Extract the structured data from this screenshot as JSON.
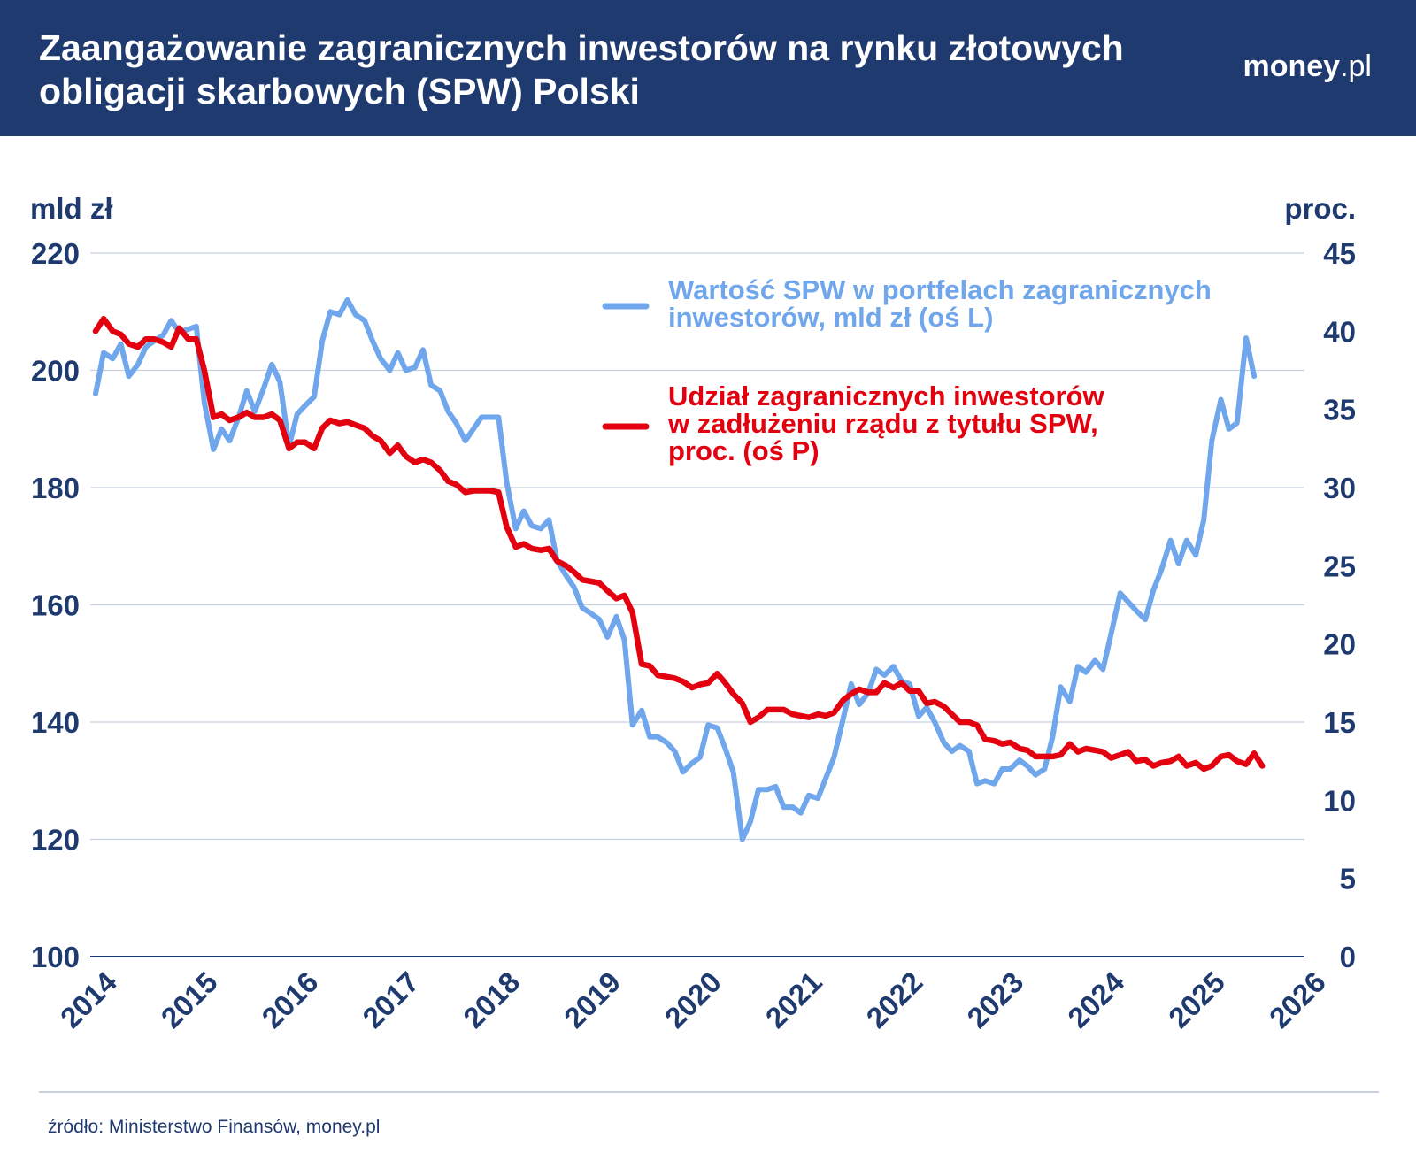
{
  "header": {
    "title": "Zaangażowanie zagranicznych inwestorów na rynku złotowych obligacji skarbowych (SPW) Polski",
    "brand_name": "money",
    "brand_domain": ".pl"
  },
  "source": "źródło: Ministerstwo Finansów, money.pl",
  "colors": {
    "header_bg": "#1f3a6e",
    "text": "#1f3a6e",
    "blue_series": "#6fa6ec",
    "red_series": "#e3000f",
    "grid": "#c7d0de"
  },
  "chart_data": {
    "type": "line",
    "left_axis": {
      "label": "mld zł",
      "ticks": [
        100,
        120,
        140,
        160,
        180,
        200,
        220
      ],
      "ylim": [
        100,
        220
      ]
    },
    "right_axis": {
      "label": "proc.",
      "ticks": [
        0,
        5,
        10,
        15,
        20,
        25,
        30,
        35,
        40,
        45
      ],
      "ylim": [
        0,
        45
      ]
    },
    "x_ticks": [
      "2014",
      "2015",
      "2016",
      "2017",
      "2018",
      "2019",
      "2020",
      "2021",
      "2022",
      "2023",
      "2024",
      "2025",
      "2026"
    ],
    "xlim": [
      2014,
      2026
    ],
    "grid": true,
    "legend_placement": "top-center",
    "series": [
      {
        "name": "Wartość SPW w portfelach zagranicznych inwestorów, mld zł (oś L)",
        "axis": "left",
        "color": "#6fa6ec",
        "points": [
          [
            2014.0,
            196.0
          ],
          [
            2014.08,
            203.0
          ],
          [
            2014.17,
            202.0
          ],
          [
            2014.25,
            204.5
          ],
          [
            2014.33,
            199.0
          ],
          [
            2014.42,
            201.0
          ],
          [
            2014.5,
            204.0
          ],
          [
            2014.58,
            205.0
          ],
          [
            2014.67,
            206.0
          ],
          [
            2014.75,
            208.5
          ],
          [
            2014.83,
            206.5
          ],
          [
            2014.92,
            207.0
          ],
          [
            2015.0,
            207.5
          ],
          [
            2015.08,
            194.5
          ],
          [
            2015.17,
            186.5
          ],
          [
            2015.25,
            190.0
          ],
          [
            2015.33,
            188.0
          ],
          [
            2015.42,
            192.0
          ],
          [
            2015.5,
            196.5
          ],
          [
            2015.58,
            193.0
          ],
          [
            2015.67,
            197.0
          ],
          [
            2015.75,
            201.0
          ],
          [
            2015.83,
            198.0
          ],
          [
            2015.92,
            187.0
          ],
          [
            2016.0,
            192.5
          ],
          [
            2016.08,
            194.0
          ],
          [
            2016.17,
            195.5
          ],
          [
            2016.25,
            205.0
          ],
          [
            2016.33,
            210.0
          ],
          [
            2016.42,
            209.5
          ],
          [
            2016.5,
            212.0
          ],
          [
            2016.58,
            209.5
          ],
          [
            2016.67,
            208.5
          ],
          [
            2016.75,
            205.0
          ],
          [
            2016.83,
            202.0
          ],
          [
            2016.92,
            200.0
          ],
          [
            2017.0,
            203.0
          ],
          [
            2017.08,
            200.0
          ],
          [
            2017.17,
            200.5
          ],
          [
            2017.25,
            203.5
          ],
          [
            2017.33,
            197.5
          ],
          [
            2017.42,
            196.5
          ],
          [
            2017.5,
            193.0
          ],
          [
            2017.58,
            191.0
          ],
          [
            2017.67,
            188.0
          ],
          [
            2017.75,
            190.0
          ],
          [
            2017.83,
            192.0
          ],
          [
            2017.92,
            192.0
          ],
          [
            2018.0,
            192.0
          ],
          [
            2018.08,
            181.0
          ],
          [
            2018.17,
            173.0
          ],
          [
            2018.25,
            176.0
          ],
          [
            2018.33,
            173.5
          ],
          [
            2018.42,
            173.0
          ],
          [
            2018.5,
            174.5
          ],
          [
            2018.58,
            167.5
          ],
          [
            2018.67,
            165.0
          ],
          [
            2018.75,
            163.0
          ],
          [
            2018.83,
            159.5
          ],
          [
            2018.92,
            158.5
          ],
          [
            2019.0,
            157.5
          ],
          [
            2019.08,
            154.5
          ],
          [
            2019.17,
            158.0
          ],
          [
            2019.25,
            154.0
          ],
          [
            2019.33,
            139.5
          ],
          [
            2019.42,
            142.0
          ],
          [
            2019.5,
            137.5
          ],
          [
            2019.58,
            137.5
          ],
          [
            2019.67,
            136.5
          ],
          [
            2019.75,
            135.0
          ],
          [
            2019.83,
            131.5
          ],
          [
            2019.92,
            133.0
          ],
          [
            2020.0,
            134.0
          ],
          [
            2020.08,
            139.5
          ],
          [
            2020.17,
            139.0
          ],
          [
            2020.25,
            135.5
          ],
          [
            2020.33,
            131.5
          ],
          [
            2020.42,
            120.0
          ],
          [
            2020.5,
            123.0
          ],
          [
            2020.58,
            128.5
          ],
          [
            2020.67,
            128.5
          ],
          [
            2020.75,
            129.0
          ],
          [
            2020.83,
            125.5
          ],
          [
            2020.92,
            125.5
          ],
          [
            2021.0,
            124.5
          ],
          [
            2021.08,
            127.5
          ],
          [
            2021.17,
            127.0
          ],
          [
            2021.25,
            130.5
          ],
          [
            2021.33,
            134.0
          ],
          [
            2021.42,
            140.5
          ],
          [
            2021.5,
            146.5
          ],
          [
            2021.58,
            143.0
          ],
          [
            2021.67,
            145.0
          ],
          [
            2021.75,
            149.0
          ],
          [
            2021.83,
            148.0
          ],
          [
            2021.92,
            149.5
          ],
          [
            2022.0,
            147.0
          ],
          [
            2022.08,
            146.5
          ],
          [
            2022.17,
            141.0
          ],
          [
            2022.25,
            142.5
          ],
          [
            2022.33,
            140.0
          ],
          [
            2022.42,
            136.5
          ],
          [
            2022.5,
            135.0
          ],
          [
            2022.58,
            136.0
          ],
          [
            2022.67,
            135.0
          ],
          [
            2022.75,
            129.5
          ],
          [
            2022.83,
            130.0
          ],
          [
            2022.92,
            129.5
          ],
          [
            2023.0,
            132.0
          ],
          [
            2023.08,
            132.0
          ],
          [
            2023.17,
            133.5
          ],
          [
            2023.25,
            132.5
          ],
          [
            2023.33,
            131.0
          ],
          [
            2023.42,
            132.0
          ],
          [
            2023.5,
            137.5
          ],
          [
            2023.58,
            146.0
          ],
          [
            2023.67,
            143.5
          ],
          [
            2023.75,
            149.5
          ],
          [
            2023.83,
            148.5
          ],
          [
            2023.92,
            150.5
          ],
          [
            2024.0,
            149.0
          ],
          [
            2024.08,
            155.0
          ],
          [
            2024.17,
            162.0
          ],
          [
            2024.25,
            160.5
          ],
          [
            2024.33,
            159.0
          ],
          [
            2024.42,
            157.5
          ],
          [
            2024.5,
            162.5
          ],
          [
            2024.58,
            166.0
          ],
          [
            2024.67,
            171.0
          ],
          [
            2024.75,
            167.0
          ],
          [
            2024.83,
            171.0
          ],
          [
            2024.92,
            168.5
          ],
          [
            2025.0,
            174.5
          ],
          [
            2025.08,
            188.0
          ],
          [
            2025.17,
            195.0
          ],
          [
            2025.25,
            190.0
          ],
          [
            2025.33,
            191.0
          ],
          [
            2025.42,
            205.5
          ],
          [
            2025.5,
            199.0
          ]
        ]
      },
      {
        "name": "Udział zagranicznych inwestorów w zadłużeniu rządu z tytułu SPW, proc. (oś P)",
        "axis": "right",
        "color": "#e3000f",
        "points": [
          [
            2014.0,
            40.0
          ],
          [
            2014.08,
            40.8
          ],
          [
            2014.17,
            40.0
          ],
          [
            2014.25,
            39.8
          ],
          [
            2014.33,
            39.2
          ],
          [
            2014.42,
            39.0
          ],
          [
            2014.5,
            39.5
          ],
          [
            2014.58,
            39.5
          ],
          [
            2014.67,
            39.3
          ],
          [
            2014.75,
            39.0
          ],
          [
            2014.83,
            40.2
          ],
          [
            2014.92,
            39.5
          ],
          [
            2015.0,
            39.5
          ],
          [
            2015.08,
            37.5
          ],
          [
            2015.17,
            34.5
          ],
          [
            2015.25,
            34.7
          ],
          [
            2015.33,
            34.3
          ],
          [
            2015.42,
            34.5
          ],
          [
            2015.5,
            34.8
          ],
          [
            2015.58,
            34.5
          ],
          [
            2015.67,
            34.5
          ],
          [
            2015.75,
            34.7
          ],
          [
            2015.83,
            34.3
          ],
          [
            2015.92,
            32.5
          ],
          [
            2016.0,
            32.9
          ],
          [
            2016.08,
            32.9
          ],
          [
            2016.17,
            32.5
          ],
          [
            2016.25,
            33.8
          ],
          [
            2016.33,
            34.3
          ],
          [
            2016.42,
            34.1
          ],
          [
            2016.5,
            34.2
          ],
          [
            2016.58,
            34.0
          ],
          [
            2016.67,
            33.8
          ],
          [
            2016.75,
            33.3
          ],
          [
            2016.83,
            33.0
          ],
          [
            2016.92,
            32.2
          ],
          [
            2017.0,
            32.7
          ],
          [
            2017.08,
            32.0
          ],
          [
            2017.17,
            31.6
          ],
          [
            2017.25,
            31.8
          ],
          [
            2017.33,
            31.6
          ],
          [
            2017.42,
            31.1
          ],
          [
            2017.5,
            30.4
          ],
          [
            2017.58,
            30.2
          ],
          [
            2017.67,
            29.7
          ],
          [
            2017.75,
            29.8
          ],
          [
            2017.83,
            29.8
          ],
          [
            2017.92,
            29.8
          ],
          [
            2018.0,
            29.7
          ],
          [
            2018.08,
            27.5
          ],
          [
            2018.17,
            26.2
          ],
          [
            2018.25,
            26.4
          ],
          [
            2018.33,
            26.1
          ],
          [
            2018.42,
            26.0
          ],
          [
            2018.5,
            26.1
          ],
          [
            2018.58,
            25.3
          ],
          [
            2018.67,
            25.0
          ],
          [
            2018.75,
            24.6
          ],
          [
            2018.83,
            24.1
          ],
          [
            2018.92,
            24.0
          ],
          [
            2019.0,
            23.9
          ],
          [
            2019.08,
            23.4
          ],
          [
            2019.17,
            22.9
          ],
          [
            2019.25,
            23.1
          ],
          [
            2019.33,
            22.0
          ],
          [
            2019.42,
            18.7
          ],
          [
            2019.5,
            18.6
          ],
          [
            2019.58,
            18.0
          ],
          [
            2019.67,
            17.9
          ],
          [
            2019.75,
            17.8
          ],
          [
            2019.83,
            17.6
          ],
          [
            2019.92,
            17.2
          ],
          [
            2020.0,
            17.4
          ],
          [
            2020.08,
            17.5
          ],
          [
            2020.17,
            18.1
          ],
          [
            2020.25,
            17.5
          ],
          [
            2020.33,
            16.8
          ],
          [
            2020.42,
            16.2
          ],
          [
            2020.5,
            15.0
          ],
          [
            2020.58,
            15.3
          ],
          [
            2020.67,
            15.8
          ],
          [
            2020.75,
            15.8
          ],
          [
            2020.83,
            15.8
          ],
          [
            2020.92,
            15.5
          ],
          [
            2021.0,
            15.4
          ],
          [
            2021.08,
            15.3
          ],
          [
            2021.17,
            15.5
          ],
          [
            2021.25,
            15.4
          ],
          [
            2021.33,
            15.6
          ],
          [
            2021.42,
            16.4
          ],
          [
            2021.5,
            16.8
          ],
          [
            2021.58,
            17.1
          ],
          [
            2021.67,
            16.9
          ],
          [
            2021.75,
            16.9
          ],
          [
            2021.83,
            17.5
          ],
          [
            2021.92,
            17.2
          ],
          [
            2022.0,
            17.5
          ],
          [
            2022.08,
            17.0
          ],
          [
            2022.17,
            17.0
          ],
          [
            2022.25,
            16.2
          ],
          [
            2022.33,
            16.3
          ],
          [
            2022.42,
            16.0
          ],
          [
            2022.5,
            15.5
          ],
          [
            2022.58,
            15.0
          ],
          [
            2022.67,
            15.0
          ],
          [
            2022.75,
            14.8
          ],
          [
            2022.83,
            13.9
          ],
          [
            2022.92,
            13.8
          ],
          [
            2023.0,
            13.6
          ],
          [
            2023.08,
            13.7
          ],
          [
            2023.17,
            13.3
          ],
          [
            2023.25,
            13.2
          ],
          [
            2023.33,
            12.8
          ],
          [
            2023.42,
            12.8
          ],
          [
            2023.5,
            12.8
          ],
          [
            2023.58,
            12.9
          ],
          [
            2023.67,
            13.6
          ],
          [
            2023.75,
            13.1
          ],
          [
            2023.83,
            13.3
          ],
          [
            2023.92,
            13.2
          ],
          [
            2024.0,
            13.1
          ],
          [
            2024.08,
            12.7
          ],
          [
            2024.17,
            12.9
          ],
          [
            2024.25,
            13.1
          ],
          [
            2024.33,
            12.5
          ],
          [
            2024.42,
            12.6
          ],
          [
            2024.5,
            12.2
          ],
          [
            2024.58,
            12.4
          ],
          [
            2024.67,
            12.5
          ],
          [
            2024.75,
            12.8
          ],
          [
            2024.83,
            12.2
          ],
          [
            2024.92,
            12.4
          ],
          [
            2025.0,
            12.0
          ],
          [
            2025.08,
            12.2
          ],
          [
            2025.17,
            12.8
          ],
          [
            2025.25,
            12.9
          ],
          [
            2025.33,
            12.5
          ],
          [
            2025.42,
            12.3
          ],
          [
            2025.5,
            13.0
          ],
          [
            2025.58,
            12.2
          ]
        ]
      }
    ],
    "legend": [
      {
        "lines": [
          "Wartość SPW w portfelach zagranicznych",
          "inwestorów, mld zł (oś L)"
        ],
        "color": "#6fa6ec"
      },
      {
        "lines": [
          "Udział zagranicznych inwestorów",
          "w zadłużeniu rządu z tytułu SPW,",
          "proc. (oś P)"
        ],
        "color": "#e3000f"
      }
    ]
  }
}
